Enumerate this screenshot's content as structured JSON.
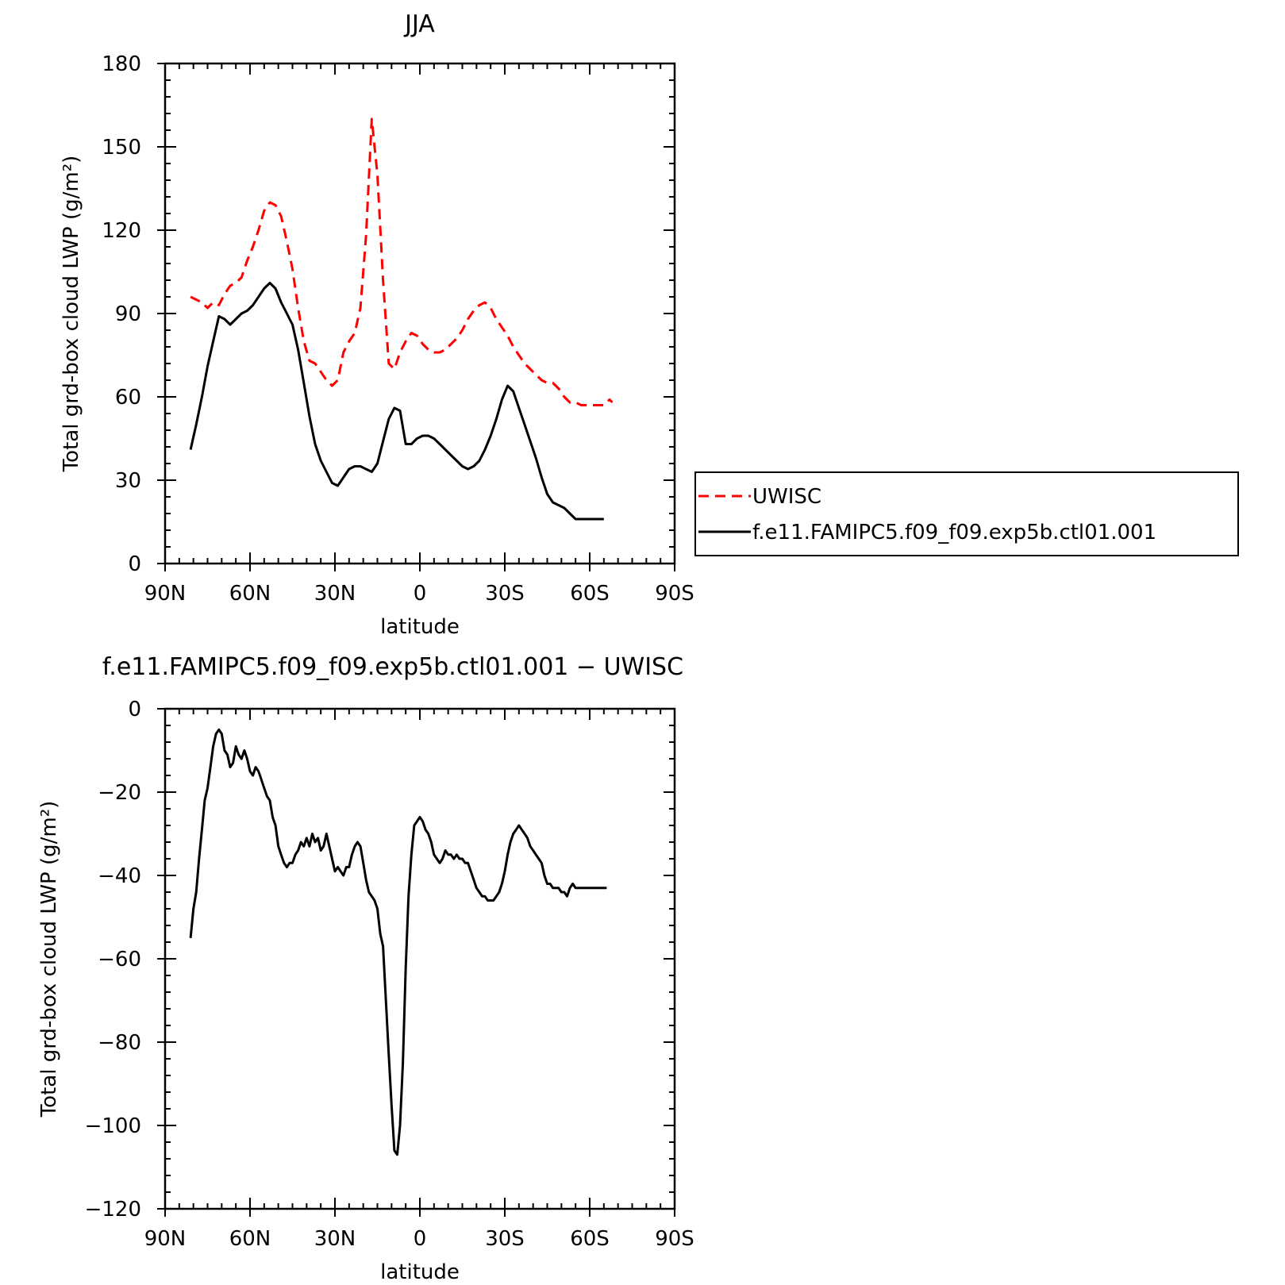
{
  "chart_data": [
    {
      "type": "line",
      "title": "JJA",
      "xlabel": "latitude",
      "ylabel": "Total grd-box cloud LWP (g/m²)",
      "xlim": [
        90,
        -90
      ],
      "ylim": [
        0,
        180
      ],
      "x_ticks": [
        90,
        60,
        30,
        0,
        -30,
        -60,
        -90
      ],
      "x_tick_labels": [
        "90N",
        "60N",
        "30N",
        "0",
        "30S",
        "60S",
        "90S"
      ],
      "y_ticks": [
        0,
        30,
        60,
        90,
        120,
        150,
        180
      ],
      "y_tick_labels": [
        "0",
        "30",
        "60",
        "90",
        "120",
        "150",
        "180"
      ],
      "legend": "right",
      "series": [
        {
          "name": "UWISC",
          "color": "#ff0000",
          "style": "dashed",
          "x": [
            81,
            79,
            77,
            75,
            73,
            71,
            69,
            67,
            65,
            63,
            61,
            59,
            57,
            55,
            53,
            51,
            49,
            47,
            45,
            43,
            41,
            39,
            37,
            35,
            33,
            31,
            29,
            27,
            25,
            23,
            21,
            19,
            17,
            15,
            13,
            11,
            9,
            7,
            5,
            3,
            1,
            -1,
            -3,
            -5,
            -7,
            -9,
            -11,
            -13,
            -15,
            -17,
            -19,
            -21,
            -23,
            -25,
            -27,
            -29,
            -31,
            -33,
            -35,
            -37,
            -39,
            -41,
            -43,
            -45,
            -47,
            -49,
            -51,
            -53,
            -55,
            -57,
            -59,
            -61,
            -63,
            -65,
            -67,
            -68
          ],
          "y": [
            96,
            95,
            94,
            92,
            94,
            93,
            97,
            100,
            101,
            103,
            109,
            114,
            120,
            127,
            130,
            129,
            125,
            116,
            106,
            92,
            80,
            73,
            72,
            69,
            66,
            64,
            66,
            76,
            80,
            83,
            92,
            118,
            160,
            140,
            102,
            72,
            70,
            76,
            80,
            83,
            82,
            79,
            77,
            76,
            76,
            77,
            79,
            81,
            84,
            88,
            91,
            93,
            94,
            92,
            88,
            85,
            82,
            78,
            75,
            72,
            70,
            68,
            66,
            65,
            65,
            63,
            60,
            58,
            58,
            57,
            57,
            57,
            57,
            57,
            59,
            58
          ]
        },
        {
          "name": "f.e11.FAMIPC5.f09_f09.exp5b.ctl01.001",
          "color": "#000000",
          "style": "solid",
          "x": [
            81,
            79,
            77,
            75,
            73,
            71,
            69,
            67,
            65,
            63,
            61,
            59,
            57,
            55,
            53,
            51,
            49,
            47,
            45,
            43,
            41,
            39,
            37,
            35,
            33,
            31,
            29,
            27,
            25,
            23,
            21,
            19,
            17,
            15,
            13,
            11,
            9,
            7,
            5,
            3,
            1,
            -1,
            -3,
            -5,
            -7,
            -9,
            -11,
            -13,
            -15,
            -17,
            -19,
            -21,
            -23,
            -25,
            -27,
            -29,
            -31,
            -33,
            -35,
            -37,
            -39,
            -41,
            -43,
            -45,
            -47,
            -49,
            -51,
            -53,
            -55,
            -57,
            -59,
            -61,
            -63,
            -65
          ],
          "y": [
            41,
            50,
            60,
            71,
            80,
            89,
            88,
            86,
            88,
            90,
            91,
            93,
            96,
            99,
            101,
            99,
            94,
            90,
            86,
            77,
            65,
            53,
            43,
            37,
            33,
            29,
            28,
            31,
            34,
            35,
            35,
            34,
            33,
            36,
            44,
            52,
            56,
            55,
            43,
            43,
            45,
            46,
            46,
            45,
            43,
            41,
            39,
            37,
            35,
            34,
            35,
            37,
            41,
            46,
            52,
            59,
            64,
            62,
            56,
            50,
            44,
            38,
            31,
            25,
            22,
            21,
            20,
            18,
            16,
            16,
            16,
            16,
            16,
            16
          ]
        }
      ]
    },
    {
      "type": "line",
      "title": "f.e11.FAMIPC5.f09_f09.exp5b.ctl01.001 − UWISC",
      "xlabel": "latitude",
      "ylabel": "Total grd-box cloud LWP (g/m²)",
      "xlim": [
        90,
        -90
      ],
      "ylim": [
        -120,
        0
      ],
      "x_ticks": [
        90,
        60,
        30,
        0,
        -30,
        -60,
        -90
      ],
      "x_tick_labels": [
        "90N",
        "60N",
        "30N",
        "0",
        "30S",
        "60S",
        "90S"
      ],
      "y_ticks": [
        0,
        -20,
        -40,
        -60,
        -80,
        -100,
        -120
      ],
      "y_tick_labels": [
        "0",
        "−20",
        "−40",
        "−60",
        "−80",
        "−100",
        "−120"
      ],
      "series": [
        {
          "color": "#000000",
          "style": "solid",
          "x": [
            81,
            80,
            79,
            78,
            77,
            76,
            75,
            74,
            73,
            72,
            71,
            70,
            69,
            68,
            67,
            66,
            65,
            64,
            63,
            62,
            61,
            60,
            59,
            58,
            57,
            56,
            55,
            54,
            53,
            52,
            51,
            50,
            49,
            48,
            47,
            46,
            45,
            44,
            43,
            42,
            41,
            40,
            39,
            38,
            37,
            36,
            35,
            34,
            33,
            32,
            31,
            30,
            29,
            28,
            27,
            26,
            25,
            24,
            23,
            22,
            21,
            20,
            19,
            18,
            17,
            16,
            15,
            14,
            13,
            12,
            11,
            10,
            9,
            8,
            7,
            6,
            5,
            4,
            3,
            2,
            1,
            0,
            -1,
            -2,
            -3,
            -4,
            -5,
            -6,
            -7,
            -8,
            -9,
            -10,
            -11,
            -12,
            -13,
            -14,
            -15,
            -16,
            -17,
            -18,
            -19,
            -20,
            -21,
            -22,
            -23,
            -24,
            -25,
            -26,
            -27,
            -28,
            -29,
            -30,
            -31,
            -32,
            -33,
            -34,
            -35,
            -36,
            -37,
            -38,
            -39,
            -40,
            -41,
            -42,
            -43,
            -44,
            -45,
            -46,
            -47,
            -48,
            -49,
            -50,
            -51,
            -52,
            -53,
            -54,
            -55,
            -56,
            -57,
            -58,
            -59,
            -60,
            -61,
            -62,
            -63,
            -64,
            -65,
            -66
          ],
          "y": [
            -55,
            -48,
            -44,
            -36,
            -29,
            -22,
            -19,
            -14,
            -9,
            -6,
            -5,
            -6,
            -10,
            -11,
            -14,
            -13,
            -9,
            -11,
            -12,
            -10,
            -12,
            -15,
            -16,
            -14,
            -15,
            -17,
            -19,
            -21,
            -22,
            -26,
            -28,
            -33,
            -35,
            -37,
            -38,
            -37,
            -37,
            -35,
            -34,
            -32,
            -33,
            -31,
            -33,
            -30,
            -32,
            -31,
            -34,
            -33,
            -30,
            -33,
            -36,
            -39,
            -38,
            -39,
            -40,
            -38,
            -38,
            -35,
            -33,
            -32,
            -33,
            -37,
            -41,
            -44,
            -45,
            -46,
            -48,
            -54,
            -57,
            -70,
            -83,
            -95,
            -106,
            -107,
            -100,
            -85,
            -62,
            -45,
            -35,
            -28,
            -27,
            -26,
            -27,
            -29,
            -30,
            -32,
            -35,
            -36,
            -37,
            -36,
            -34,
            -35,
            -35,
            -36,
            -35,
            -36,
            -36,
            -37,
            -37,
            -39,
            -41,
            -43,
            -44,
            -45,
            -45,
            -46,
            -46,
            -46,
            -45,
            -44,
            -42,
            -39,
            -35,
            -32,
            -30,
            -29,
            -28,
            -29,
            -30,
            -31,
            -33,
            -34,
            -35,
            -36,
            -37,
            -40,
            -42,
            -42,
            -43,
            -43,
            -43,
            -44,
            -44,
            -45,
            -43,
            -42,
            -43,
            -43,
            -43,
            -43,
            -43,
            -43,
            -43,
            -43,
            -43,
            -43,
            -43,
            -43
          ]
        }
      ]
    }
  ]
}
